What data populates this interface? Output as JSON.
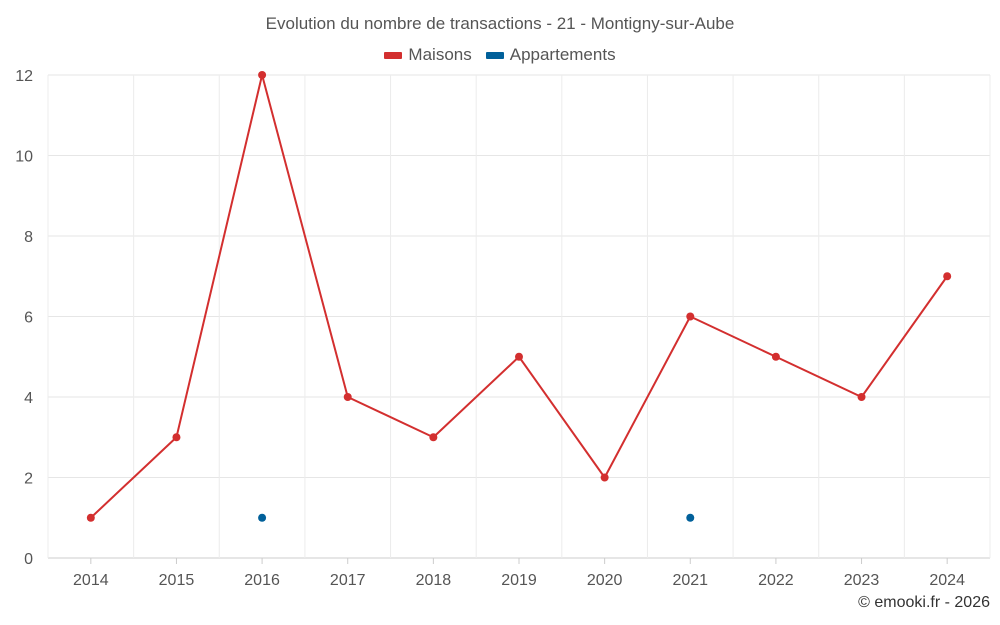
{
  "chart_data": {
    "type": "line",
    "title": "Evolution du nombre de transactions - 21 - Montigny-sur-Aube",
    "categories": [
      "2014",
      "2015",
      "2016",
      "2017",
      "2018",
      "2019",
      "2020",
      "2021",
      "2022",
      "2023",
      "2024"
    ],
    "series": [
      {
        "name": "Maisons",
        "color": "#d32f2f",
        "values": [
          1,
          3,
          12,
          4,
          3,
          5,
          2,
          6,
          5,
          4,
          7
        ]
      },
      {
        "name": "Appartements",
        "color": "#01609a",
        "values": [
          null,
          null,
          1,
          null,
          null,
          null,
          null,
          1,
          null,
          null,
          null
        ]
      }
    ],
    "ylim": [
      0,
      12
    ],
    "yticks": [
      0,
      2,
      4,
      6,
      8,
      10,
      12
    ],
    "grid": true,
    "legend_position": "top-center"
  },
  "credit": "© emooki.fr - 2026"
}
